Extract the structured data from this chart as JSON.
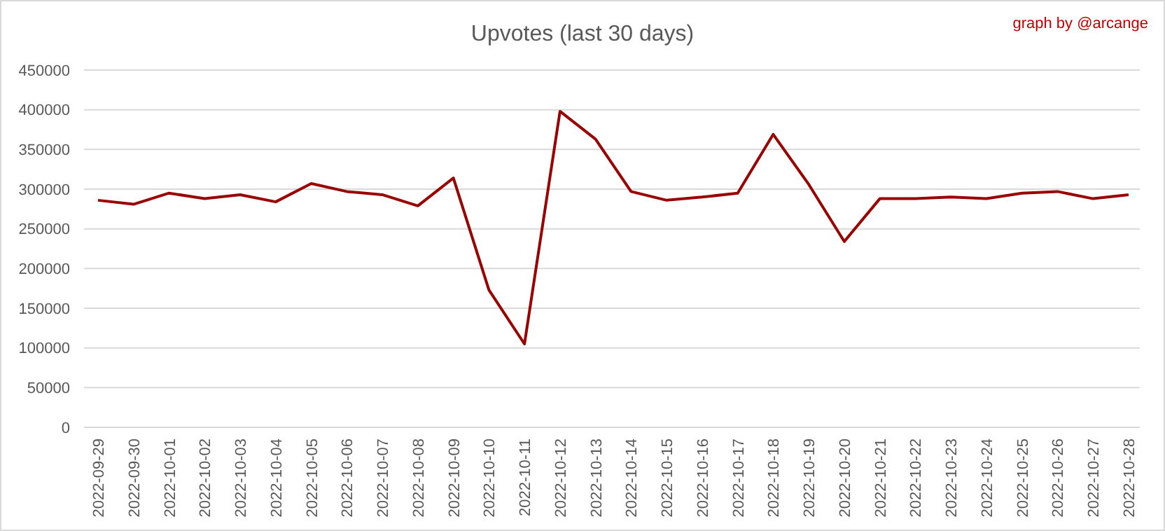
{
  "chart_data": {
    "type": "line",
    "title": "Upvotes (last 30 days)",
    "annotations": [
      "graph by @arcange"
    ],
    "categories": [
      "2022-09-29",
      "2022-09-30",
      "2022-10-01",
      "2022-10-02",
      "2022-10-03",
      "2022-10-04",
      "2022-10-05",
      "2022-10-06",
      "2022-10-07",
      "2022-10-08",
      "2022-10-09",
      "2022-10-10",
      "2022-10-11",
      "2022-10-12",
      "2022-10-13",
      "2022-10-14",
      "2022-10-15",
      "2022-10-16",
      "2022-10-17",
      "2022-10-18",
      "2022-10-19",
      "2022-10-20",
      "2022-10-21",
      "2022-10-22",
      "2022-10-23",
      "2022-10-24",
      "2022-10-25",
      "2022-10-26",
      "2022-10-27",
      "2022-10-28"
    ],
    "series": [
      {
        "color": "#990000",
        "values": [
          286000,
          281000,
          295000,
          288000,
          293000,
          284000,
          307000,
          297000,
          293000,
          279000,
          314000,
          173000,
          105000,
          398000,
          363000,
          297000,
          286000,
          290000,
          295000,
          369000,
          306000,
          234000,
          288000,
          288000,
          290000,
          288000,
          295000,
          297000,
          288000,
          293000
        ]
      }
    ],
    "ylim": [
      0,
      450000
    ],
    "yticks": [
      0,
      50000,
      100000,
      150000,
      200000,
      250000,
      300000,
      350000,
      400000,
      450000
    ],
    "grid": "y",
    "marker": "none",
    "line_style": "solid"
  }
}
